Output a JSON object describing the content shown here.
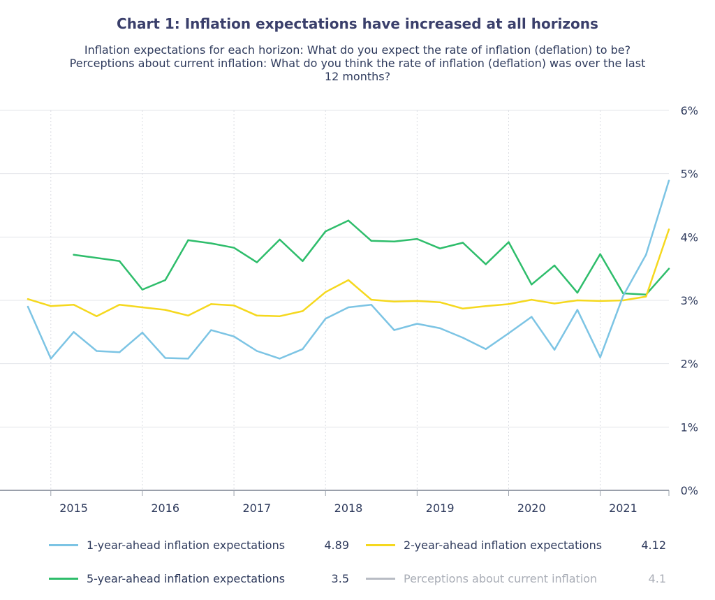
{
  "chart_data": {
    "type": "line",
    "title": "Chart 1: Inflation expectations have increased at all horizons",
    "subtitle_lines": [
      "Inflation expectations for each horizon: What do you expect the rate of inflation (deflation) to be?",
      "Perceptions about current inflation: What do you think the rate of inflation (deflation) was over the last",
      "12 months?"
    ],
    "x_tick_labels": [
      "2015",
      "2016",
      "2017",
      "2018",
      "2019",
      "2020",
      "2021"
    ],
    "y_tick_labels": [
      "0%",
      "1%",
      "2%",
      "3%",
      "4%",
      "5%",
      "6%"
    ],
    "ylim": [
      0,
      6
    ],
    "xlim": [
      2014.75,
      2021.75
    ],
    "grid": true,
    "legend_position": "bottom",
    "series": [
      {
        "name": "1-year-ahead inflation expectations",
        "color": "#7cc4e4",
        "latest": "4.89",
        "x": [
          2014.75,
          2015.0,
          2015.25,
          2015.5,
          2015.75,
          2016.0,
          2016.25,
          2016.5,
          2016.75,
          2017.0,
          2017.25,
          2017.5,
          2017.75,
          2018.0,
          2018.25,
          2018.5,
          2018.75,
          2019.0,
          2019.25,
          2019.5,
          2019.75,
          2020.0,
          2020.25,
          2020.5,
          2020.75,
          2021.0,
          2021.25,
          2021.5,
          2021.75
        ],
        "values": [
          2.9,
          2.08,
          2.5,
          2.2,
          2.18,
          2.49,
          2.09,
          2.08,
          2.53,
          2.43,
          2.2,
          2.08,
          2.23,
          2.71,
          2.89,
          2.93,
          2.53,
          2.63,
          2.56,
          2.41,
          2.23,
          2.48,
          2.74,
          2.22,
          2.85,
          2.1,
          3.07,
          3.72,
          4.89
        ]
      },
      {
        "name": "2-year-ahead inflation expectations",
        "color": "#f5d81e",
        "latest": "4.12",
        "x": [
          2014.75,
          2015.0,
          2015.25,
          2015.5,
          2015.75,
          2016.0,
          2016.25,
          2016.5,
          2016.75,
          2017.0,
          2017.25,
          2017.5,
          2017.75,
          2018.0,
          2018.25,
          2018.5,
          2018.75,
          2019.0,
          2019.25,
          2019.5,
          2019.75,
          2020.0,
          2020.25,
          2020.5,
          2020.75,
          2021.0,
          2021.25,
          2021.5,
          2021.75
        ],
        "values": [
          3.02,
          2.91,
          2.93,
          2.75,
          2.93,
          2.89,
          2.85,
          2.76,
          2.94,
          2.92,
          2.76,
          2.75,
          2.83,
          3.13,
          3.32,
          3.01,
          2.98,
          2.99,
          2.97,
          2.87,
          2.91,
          2.94,
          3.01,
          2.95,
          3.0,
          2.99,
          3.0,
          3.06,
          4.12
        ]
      },
      {
        "name": "5-year-ahead inflation expectations",
        "color": "#2ebd6b",
        "latest": "3.5",
        "x": [
          2015.25,
          2015.75,
          2016.0,
          2016.25,
          2016.5,
          2016.75,
          2017.0,
          2017.25,
          2017.5,
          2017.75,
          2018.0,
          2018.25,
          2018.5,
          2018.75,
          2019.0,
          2019.25,
          2019.5,
          2019.75,
          2020.0,
          2020.25,
          2020.5,
          2020.75,
          2021.0,
          2021.25,
          2021.5,
          2021.75
        ],
        "values": [
          3.72,
          3.62,
          3.17,
          3.32,
          3.95,
          3.9,
          3.83,
          3.6,
          3.96,
          3.62,
          4.09,
          4.26,
          3.94,
          3.93,
          3.97,
          3.82,
          3.91,
          3.57,
          3.92,
          3.25,
          3.55,
          3.12,
          3.73,
          3.11,
          3.09,
          3.5
        ]
      },
      {
        "name": "Perceptions about current inflation",
        "color": "#b8bcc4",
        "latest": "4.1",
        "hidden": true,
        "x": [],
        "values": []
      }
    ]
  }
}
